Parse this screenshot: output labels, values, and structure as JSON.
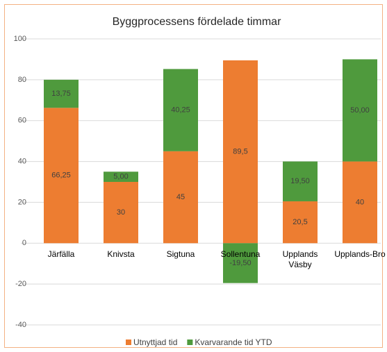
{
  "chart_data": {
    "type": "stacked_bar",
    "title": "Byggprocessens fördelade timmar",
    "categories": [
      "Järfälla",
      "Knivsta",
      "Sigtuna",
      "Sollentuna",
      "Upplands Väsby",
      "Upplands-Bro"
    ],
    "series": [
      {
        "name": "Utnyttjad tid",
        "color": "#ed7d31",
        "values": [
          66.25,
          30,
          45,
          89.5,
          20.5,
          40
        ],
        "value_labels": [
          "66,25",
          "30",
          "45",
          "89,5",
          "20,5",
          "40"
        ]
      },
      {
        "name": "Kvarvarande tid YTD",
        "color": "#4f9a3d",
        "values": [
          13.75,
          5,
          40.25,
          -19.5,
          19.5,
          50
        ],
        "value_labels": [
          "13,75",
          "5,00",
          "40,25",
          "-19,50",
          "19,50",
          "50,00"
        ]
      }
    ],
    "ylim": [
      -40,
      100
    ],
    "yticks": [
      -40,
      -20,
      0,
      20,
      40,
      60,
      80,
      100
    ],
    "grid": true,
    "legend": "bottom"
  }
}
